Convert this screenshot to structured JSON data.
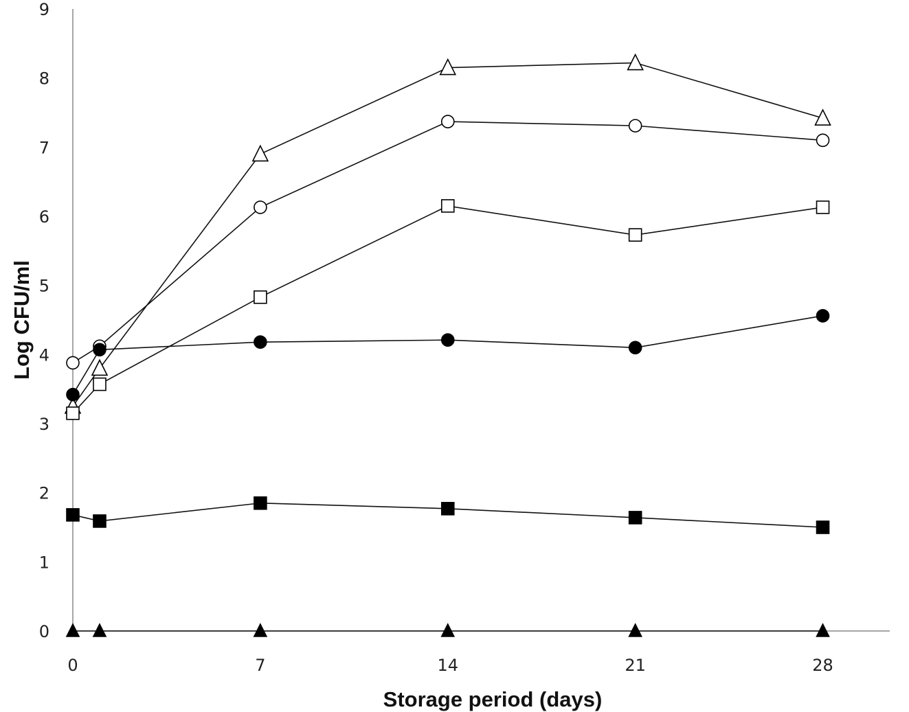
{
  "chart_data": {
    "type": "line",
    "title": "",
    "xlabel": "Storage period (days)",
    "ylabel": "Log CFU/ml",
    "xlim": [
      0,
      30.5
    ],
    "ylim": [
      0,
      9
    ],
    "x_ticks": [
      0,
      7,
      14,
      21,
      28
    ],
    "y_ticks": [
      0,
      1,
      2,
      3,
      4,
      5,
      6,
      7,
      8,
      9
    ],
    "grid": false,
    "legend": "none",
    "x": [
      0,
      1,
      7,
      14,
      21,
      28
    ],
    "series": [
      {
        "marker": "open-triangle",
        "values": [
          3.25,
          3.8,
          6.9,
          8.15,
          8.22,
          7.42
        ]
      },
      {
        "marker": "open-circle",
        "values": [
          3.88,
          4.12,
          6.13,
          7.37,
          7.31,
          7.1
        ]
      },
      {
        "marker": "open-square",
        "values": [
          3.15,
          3.57,
          4.83,
          6.15,
          5.73,
          6.13
        ]
      },
      {
        "marker": "filled-circle",
        "values": [
          3.42,
          4.07,
          4.18,
          4.21,
          4.1,
          4.56
        ]
      },
      {
        "marker": "filled-square",
        "values": [
          1.68,
          1.59,
          1.85,
          1.77,
          1.64,
          1.5
        ]
      },
      {
        "marker": "filled-triangle",
        "values": [
          0,
          0,
          0,
          0,
          0,
          0
        ]
      }
    ]
  }
}
